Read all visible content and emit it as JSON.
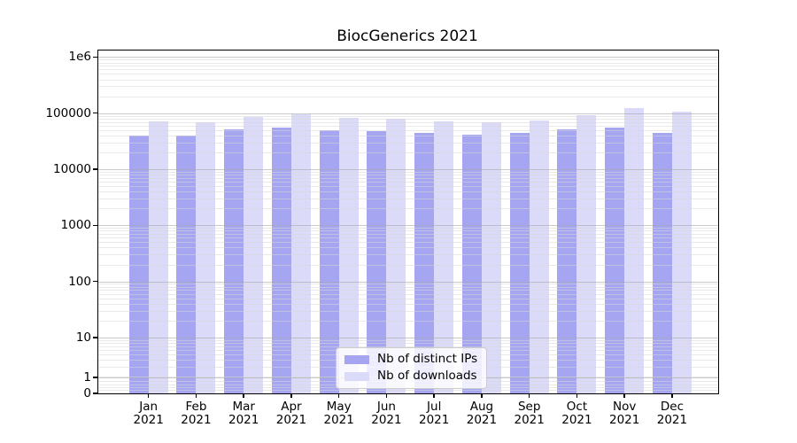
{
  "title": "BiocGenerics 2021",
  "y_axis": {
    "ticks": [
      "1e6",
      "100000",
      "10000",
      "1000",
      "100",
      "10",
      "1",
      "0"
    ]
  },
  "legend": {
    "entries": [
      "Nb of distinct IPs",
      "Nb of downloads"
    ]
  },
  "chart_data": {
    "type": "bar",
    "title": "BiocGenerics 2021",
    "categories": [
      "Jan 2021",
      "Feb 2021",
      "Mar 2021",
      "Apr 2021",
      "May 2021",
      "Jun 2021",
      "Jul 2021",
      "Aug 2021",
      "Sep 2021",
      "Oct 2021",
      "Nov 2021",
      "Dec 2021"
    ],
    "series": [
      {
        "name": "Nb of distinct IPs",
        "color": "#a5a5f2",
        "values": [
          40500,
          40500,
          51500,
          55000,
          50000,
          47500,
          44000,
          42000,
          45000,
          50500,
          54500,
          44000
        ]
      },
      {
        "name": "Nb of downloads",
        "color": "#dbdbf9",
        "values": [
          71500,
          68500,
          84000,
          97000,
          82000,
          79000,
          72500,
          70000,
          74000,
          93000,
          123000,
          106500
        ]
      }
    ],
    "xlabel": "",
    "ylabel": "",
    "yscale": "symlog",
    "ytick_labels": [
      "0",
      "1",
      "10",
      "100",
      "1000",
      "10000",
      "100000",
      "1e6"
    ],
    "ylim": [
      0,
      1350000
    ],
    "grid": true,
    "grid_over_bars": true,
    "legend_position": "lower center",
    "background": "#ffffff",
    "axis_color": "#000000",
    "major_grid_color": "#c6c6c6",
    "minor_grid_color": "#e8e8e8"
  }
}
